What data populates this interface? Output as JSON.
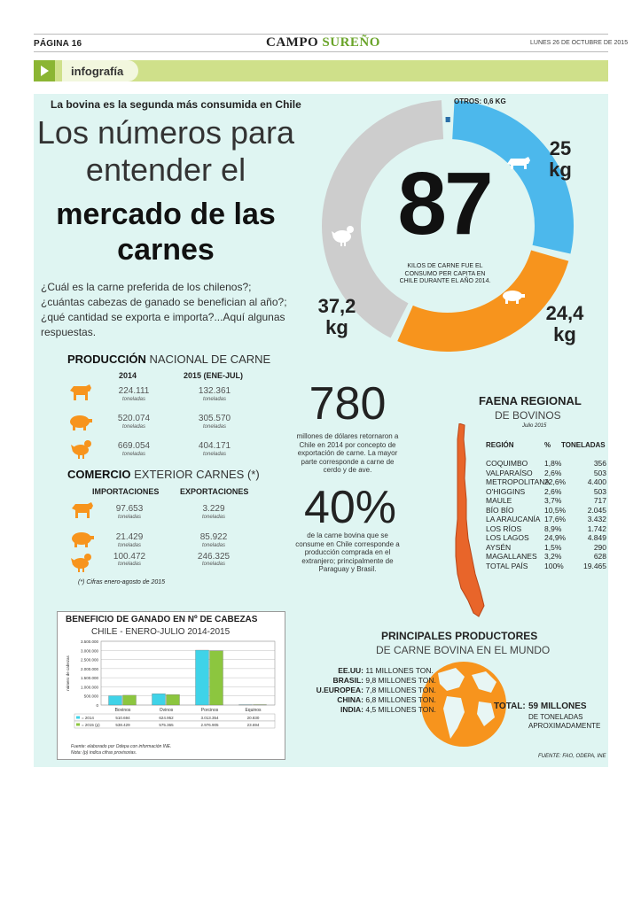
{
  "header": {
    "page": "PÁGINA 16",
    "masthead_a": "CAMPO",
    "masthead_b": "SUREÑO",
    "date": "LUNES 26 DE OCTUBRE DE 2015"
  },
  "section_label": "infografía",
  "kicker": "La bovina es la segunda más consumida en Chile",
  "title": {
    "line1": "Los números para",
    "line2": "entender el",
    "line3": "mercado de las",
    "line4": "carnes"
  },
  "intro": "¿Cuál es la carne preferida de los chilenos?; ¿cuántas cabezas de ganado se benefician al año?; ¿qué cantidad se exporta e importa?...Aquí algunas respuestas.",
  "consumo": {
    "total": "87",
    "caption": "KILOS DE CARNE FUE EL CONSUMO PER CAPITA EN CHILE DURANTE  EL AÑO 2014.",
    "otros": "OTROS: 0,6 KG",
    "bovino_num": "25",
    "bovino_unit": "kg",
    "porcino_num": "24,4",
    "porcino_unit": "kg",
    "ave_num": "37,2",
    "ave_unit": "kg",
    "segments": [
      {
        "name": "bovino",
        "kg": 25,
        "color": "#4cb8ec"
      },
      {
        "name": "porcino",
        "kg": 24.4,
        "color": "#f7941d"
      },
      {
        "name": "ave",
        "kg": 37.2,
        "color": "#cdcdcd"
      },
      {
        "name": "otros",
        "kg": 0.6,
        "color": "#2a6fa8"
      }
    ]
  },
  "produccion": {
    "title_bold": "PRODUCCIÓN",
    "title_rest": " NACIONAL DE CARNE",
    "h2014": "2014",
    "h2015": "2015 (ENE-JUL)",
    "unit": "toneladas",
    "rows": [
      {
        "animal": "bovino",
        "v2014": "224.111",
        "v2015": "132.361"
      },
      {
        "animal": "porcino",
        "v2014": "520.074",
        "v2015": "305.570"
      },
      {
        "animal": "ave",
        "v2014": "669.054",
        "v2015": "404.171"
      }
    ]
  },
  "comercio": {
    "title_bold": "COMERCIO",
    "title_rest": " EXTERIOR CARNES (*)",
    "h_imp": "IMPORTACIONES",
    "h_exp": "EXPORTACIONES",
    "unit": "toneladas",
    "rows": [
      {
        "animal": "bovino",
        "imp": "97.653",
        "exp": "3.229"
      },
      {
        "animal": "porcino",
        "imp": "21.429",
        "exp": "85.922"
      },
      {
        "animal": "ave",
        "imp": "100.472",
        "exp": "246.325"
      }
    ],
    "note": "(*) Cifras enero-agosto de 2015"
  },
  "stats": {
    "n780": "780",
    "t780": "millones de dólares retornaron a Chile en 2014 por concepto de exportación de carne. La mayor parte corresponde a carne de cerdo y de ave.",
    "n40": "40%",
    "t40": "de la carne bovina que se consume en Chile corresponde a producción comprada en el extranjero; principalmente de Paraguay y Brasil."
  },
  "faena": {
    "title": "FAENA REGIONAL",
    "subtitle": "DE BOVINOS",
    "date": "Julio 2015",
    "h_region": "REGIÓN",
    "h_pct": "%",
    "h_ton": "TONELADAS",
    "rows": [
      {
        "region": "COQUIMBO",
        "pct": "1,8%",
        "ton": "356"
      },
      {
        "region": "VALPARAÍSO",
        "pct": "2,6%",
        "ton": "503"
      },
      {
        "region": "METROPOLITANA",
        "pct": "22,6%",
        "ton": "4.400"
      },
      {
        "region": "O'HIGGINS",
        "pct": "2,6%",
        "ton": "503"
      },
      {
        "region": "MAULE",
        "pct": "3,7%",
        "ton": "717"
      },
      {
        "region": "BÍO BÍO",
        "pct": "10,5%",
        "ton": "2.045"
      },
      {
        "region": "LA ARAUCANÍA",
        "pct": "17,6%",
        "ton": "3.432"
      },
      {
        "region": "LOS RÍOS",
        "pct": "8,9%",
        "ton": "1.742"
      },
      {
        "region": "LOS LAGOS",
        "pct": "24,9%",
        "ton": "4.849"
      },
      {
        "region": "AYSÉN",
        "pct": "1,5%",
        "ton": "290"
      },
      {
        "region": "MAGALLANES",
        "pct": "3,2%",
        "ton": "628"
      },
      {
        "region": "TOTAL PAÍS",
        "pct": "100%",
        "ton": "19.465"
      }
    ]
  },
  "chart_data": {
    "type": "bar",
    "title": "BENEFICIO DE GANADO EN Nº DE CABEZAS",
    "subtitle": "CHILE - ENERO-JULIO 2014-2015",
    "ylabel": "número de cabezas",
    "ylim": [
      0,
      3500000
    ],
    "yticks": [
      "3.500.000",
      "3.000.000",
      "2.500.000",
      "2.000.000",
      "1.500.000",
      "1.000.000",
      "500.000",
      "0"
    ],
    "categories": [
      "Bovinos",
      "Ovinos",
      "Porcinos",
      "Equinos"
    ],
    "series": [
      {
        "name": "2014",
        "color": "#3fd3e8",
        "values": [
          510694,
          624952,
          3013354,
          20830
        ],
        "labels": [
          "510.694",
          "624.952",
          "3.013.354",
          "20.830"
        ]
      },
      {
        "name": "2015 (p)",
        "color": "#8cc63f",
        "values": [
          538429,
          575365,
          2976905,
          23694
        ],
        "labels": [
          "538.429",
          "575.365",
          "2.976.905",
          "23.694"
        ]
      }
    ],
    "legend": "table-below",
    "source": "Fuente: elaborado por Odepa con información INE.",
    "note": "Nota: (p) indica cifras provisorias."
  },
  "productores": {
    "title": "PRINCIPALES PRODUCTORES",
    "subtitle": "DE CARNE BOVINA EN EL MUNDO",
    "rows": [
      {
        "country": "EE.UU:",
        "value": " 11 MILLONES TON."
      },
      {
        "country": "BRASIL:",
        "value": " 9,8 MILLONES TON."
      },
      {
        "country": "U.EUROPEA:",
        "value": " 7,8 MILLONES TON."
      },
      {
        "country": "CHINA:",
        "value": " 6,8 MILLONES TON."
      },
      {
        "country": "INDIA:",
        "value": " 4,5 MILLONES TON."
      }
    ],
    "total_label": "TOTAL:",
    "total_value": "59 MILLONES",
    "total_unit": "DE TONELADAS APROXIMADAMENTE"
  },
  "fuente": "FUENTE: FAO, ODEPA, INE",
  "colors": {
    "accent_green": "#8bb533",
    "bg_teal": "#dff5f2",
    "orange": "#f7941d",
    "blue": "#4cb8ec"
  }
}
